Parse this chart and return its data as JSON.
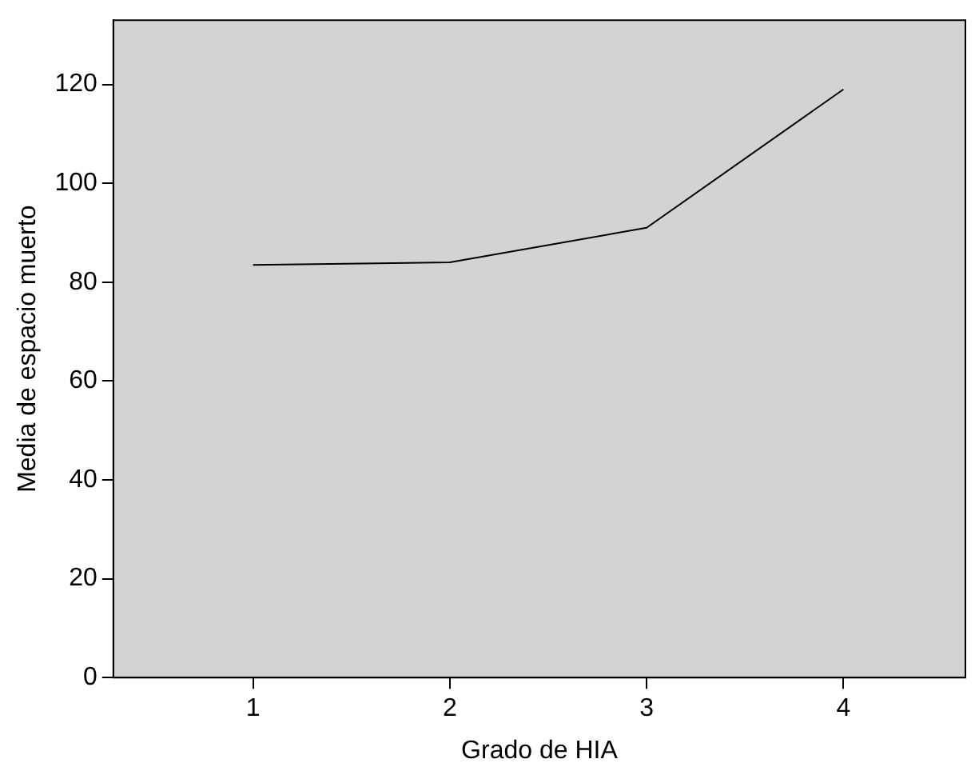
{
  "chart_data": {
    "type": "line",
    "xlabel": "Grado de HIA",
    "ylabel": "Media de espacio muerto",
    "x": [
      1,
      2,
      3,
      4
    ],
    "series": [
      {
        "color": "#000000",
        "values": [
          83.5,
          84,
          91,
          119
        ]
      }
    ],
    "xlim": [
      0.29,
      4.62
    ],
    "xticks": [
      1,
      2,
      3,
      4
    ],
    "ylim": [
      0,
      133
    ],
    "yticks": [
      0,
      20,
      40,
      60,
      80,
      100,
      120
    ],
    "grid": false,
    "legend": false,
    "marker": "none",
    "line_style": "solid"
  }
}
